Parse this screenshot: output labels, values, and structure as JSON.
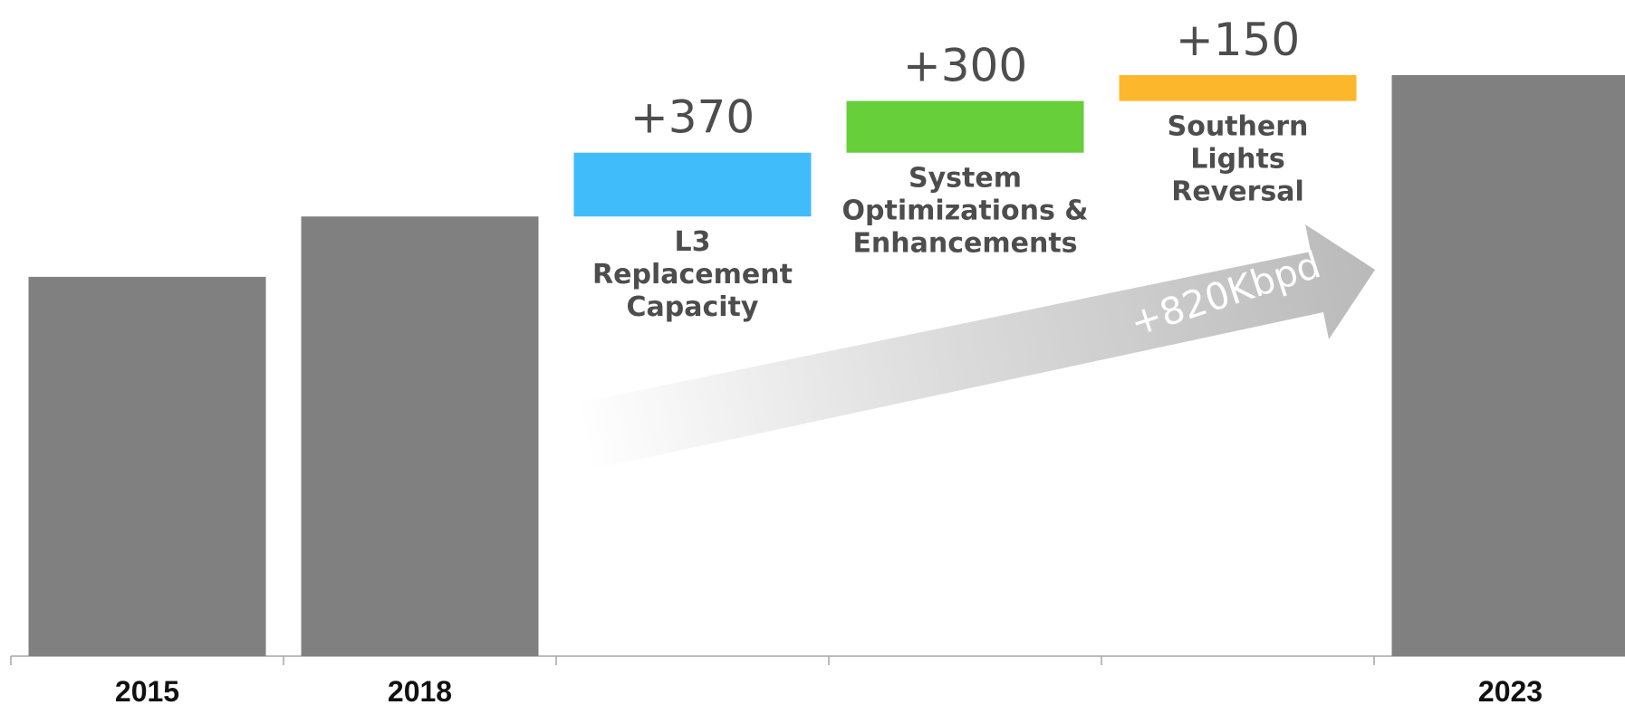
{
  "chart_data": {
    "type": "bar",
    "variant": "waterfall",
    "categories": [
      "2015",
      "2018",
      "L3 Replacement Capacity",
      "System Optimizations & Enhancements",
      "Southern Lights Reversal",
      "2023"
    ],
    "totals": [
      {
        "category": "2015",
        "value": 2200
      },
      {
        "category": "2018",
        "value": 2550
      },
      {
        "category": "2023",
        "value": 3370
      }
    ],
    "increments": [
      {
        "label_lines": [
          "L3",
          "Replacement",
          "Capacity"
        ],
        "display": "+370",
        "value": 370,
        "color": "#41bcfb"
      },
      {
        "label_lines": [
          "System",
          "Optimizations &",
          "Enhancements"
        ],
        "display": "+300",
        "value": 300,
        "color": "#66cf3a"
      },
      {
        "label_lines": [
          "Southern",
          "Lights",
          "Reversal"
        ],
        "display": "+150",
        "value": 150,
        "color": "#fdb72c"
      }
    ],
    "arrow_label": "+820Kbpd",
    "xlabel": "",
    "ylabel": "",
    "ylim": [
      0,
      3700
    ],
    "bar_color": "#808080",
    "axis_color": "#a6a6a6",
    "grid": false,
    "legend": "none"
  }
}
